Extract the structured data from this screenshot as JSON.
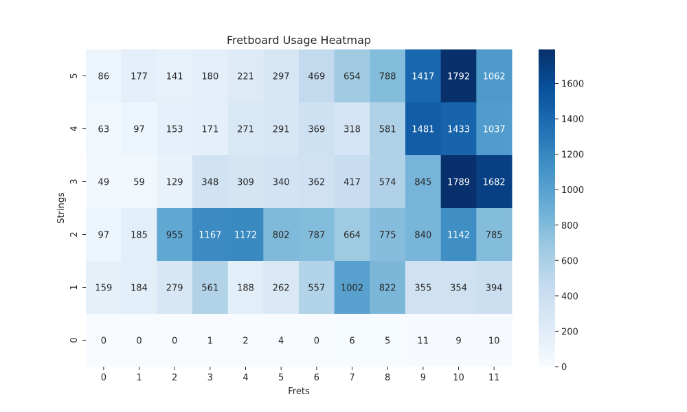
{
  "chart_data": {
    "type": "heatmap",
    "title": "Fretboard Usage Heatmap",
    "xlabel": "Frets",
    "ylabel": "Strings",
    "x_categories": [
      "0",
      "1",
      "2",
      "3",
      "4",
      "5",
      "6",
      "7",
      "8",
      "9",
      "10",
      "11"
    ],
    "y_categories": [
      "5",
      "4",
      "3",
      "2",
      "1",
      "0"
    ],
    "values": [
      [
        86,
        177,
        141,
        180,
        221,
        297,
        469,
        654,
        788,
        1417,
        1792,
        1062
      ],
      [
        63,
        97,
        153,
        171,
        271,
        291,
        369,
        318,
        581,
        1481,
        1433,
        1037
      ],
      [
        49,
        59,
        129,
        348,
        309,
        340,
        362,
        417,
        574,
        845,
        1789,
        1682
      ],
      [
        97,
        185,
        955,
        1167,
        1172,
        802,
        787,
        664,
        775,
        840,
        1142,
        785
      ],
      [
        159,
        184,
        279,
        561,
        188,
        262,
        557,
        1002,
        822,
        355,
        354,
        394
      ],
      [
        0,
        0,
        0,
        1,
        2,
        4,
        0,
        6,
        5,
        11,
        9,
        10
      ]
    ],
    "colormap": "Blues",
    "color_range": [
      0,
      1792
    ],
    "colorbar_ticks": [
      "0",
      "200",
      "400",
      "600",
      "800",
      "1000",
      "1200",
      "1400",
      "1600"
    ],
    "annotations": true,
    "grid": false,
    "legend": "colorbar-right"
  }
}
